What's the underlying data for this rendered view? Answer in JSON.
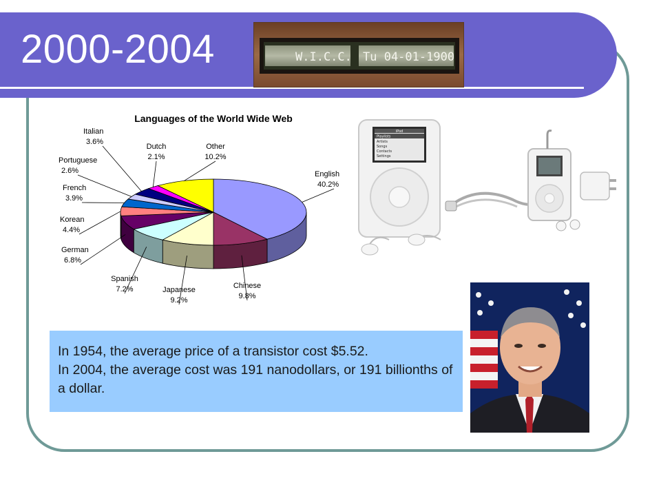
{
  "slide": {
    "title": "2000-2004",
    "info_box": {
      "line1": "In 1954, the average price of a transistor cost $5.52.",
      "line2": "In 2004, the average cost was 191 nanodollars, or 191 billionths of a dollar."
    },
    "wicc_display": {
      "left_text": "W.I.C.C.",
      "right_text": "Tu 04-01-1900"
    },
    "ipod_screen": {
      "header": "iPod",
      "menu": [
        "Playlists",
        "Artists",
        "Songs",
        "Contacts",
        "Settings"
      ]
    }
  },
  "colors": {
    "title_bar": "#6a62cc",
    "frame_border": "#6f9a97",
    "info_box_bg": "#99ccff"
  },
  "chart_data": {
    "type": "pie",
    "title": "Languages of the World Wide Web",
    "slices": [
      {
        "label": "English",
        "value": 40.2,
        "display": "40.2%",
        "color": "#9999ff"
      },
      {
        "label": "Chinese",
        "value": 9.8,
        "display": "9.8%",
        "color": "#993366"
      },
      {
        "label": "Japanese",
        "value": 9.2,
        "display": "9.2%",
        "color": "#ffffcc"
      },
      {
        "label": "Spanish",
        "value": 7.2,
        "display": "7.2%",
        "color": "#ccffff"
      },
      {
        "label": "German",
        "value": 6.8,
        "display": "6.8%",
        "color": "#660066"
      },
      {
        "label": "Korean",
        "value": 4.4,
        "display": "4.4%",
        "color": "#ff8080"
      },
      {
        "label": "French",
        "value": 3.9,
        "display": "3.9%",
        "color": "#0066cc"
      },
      {
        "label": "Portuguese",
        "value": 2.6,
        "display": "2.6%",
        "color": "#ccccff"
      },
      {
        "label": "Italian",
        "value": 3.6,
        "display": "3.6%",
        "color": "#000080"
      },
      {
        "label": "Dutch",
        "value": 2.1,
        "display": "2.1%",
        "color": "#ff00ff"
      },
      {
        "label": "Other",
        "value": 10.2,
        "display": "10.2%",
        "color": "#ffff00"
      }
    ]
  }
}
